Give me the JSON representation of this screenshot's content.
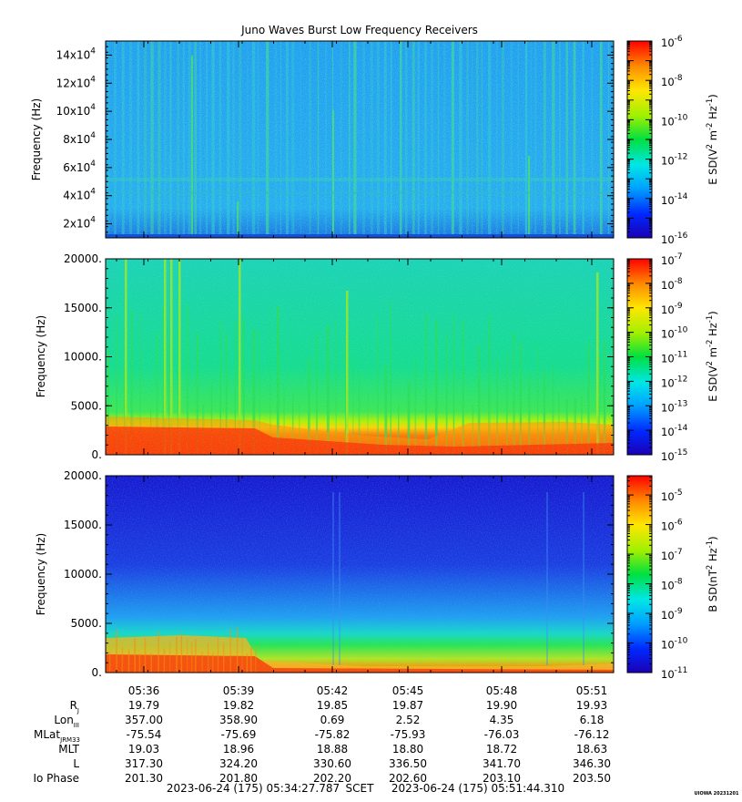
{
  "title": "Juno Waves Burst Low Frequency Receivers",
  "chart_data": [
    {
      "type": "heatmap",
      "ylabel": "Frequency (Hz)",
      "ylim": [
        10000,
        150000
      ],
      "y_ticks": [
        {
          "value": 20000,
          "mant": "2x10",
          "exp": "4"
        },
        {
          "value": 40000,
          "mant": "4x10",
          "exp": "4"
        },
        {
          "value": 60000,
          "mant": "6x10",
          "exp": "4"
        },
        {
          "value": 80000,
          "mant": "8x10",
          "exp": "4"
        },
        {
          "value": 100000,
          "mant": "10x10",
          "exp": "4"
        },
        {
          "value": 120000,
          "mant": "12x10",
          "exp": "4"
        },
        {
          "value": 140000,
          "mant": "14x10",
          "exp": "4"
        }
      ],
      "colorbar": {
        "label_pre": "E SD(V",
        "sup1": "2",
        "label_mid": " m",
        "sup2": "-2",
        "label_mid2": " Hz",
        "sup3": "-1",
        "label_post": ")",
        "log_min": -16,
        "log_max": -6,
        "ticks": [
          {
            "value": -6,
            "base": "10",
            "exp": "-6"
          },
          {
            "value": -8,
            "base": "10",
            "exp": "-8"
          },
          {
            "value": -10,
            "base": "10",
            "exp": "-10"
          },
          {
            "value": -12,
            "base": "10",
            "exp": "-12"
          },
          {
            "value": -14,
            "base": "10",
            "exp": "-14"
          },
          {
            "value": -16,
            "base": "10",
            "exp": "-16"
          }
        ]
      }
    },
    {
      "type": "heatmap",
      "ylabel": "Frequency (Hz)",
      "ylim": [
        0,
        20000
      ],
      "y_ticks": [
        {
          "value": 0,
          "label": "0."
        },
        {
          "value": 5000,
          "label": "5000."
        },
        {
          "value": 10000,
          "label": "10000."
        },
        {
          "value": 15000,
          "label": "15000."
        },
        {
          "value": 20000,
          "label": "20000."
        }
      ],
      "colorbar": {
        "label_pre": "E SD(V",
        "sup1": "2",
        "label_mid": " m",
        "sup2": "-2",
        "label_mid2": " Hz",
        "sup3": "-1",
        "label_post": ")",
        "log_min": -15,
        "log_max": -7,
        "ticks": [
          {
            "value": -7,
            "base": "10",
            "exp": "-7"
          },
          {
            "value": -8,
            "base": "10",
            "exp": "-8"
          },
          {
            "value": -9,
            "base": "10",
            "exp": "-9"
          },
          {
            "value": -10,
            "base": "10",
            "exp": "-10"
          },
          {
            "value": -11,
            "base": "10",
            "exp": "-11"
          },
          {
            "value": -12,
            "base": "10",
            "exp": "-12"
          },
          {
            "value": -13,
            "base": "10",
            "exp": "-13"
          },
          {
            "value": -14,
            "base": "10",
            "exp": "-14"
          },
          {
            "value": -15,
            "base": "10",
            "exp": "-15"
          }
        ]
      }
    },
    {
      "type": "heatmap",
      "ylabel": "Frequency (Hz)",
      "ylim": [
        0,
        20000
      ],
      "y_ticks": [
        {
          "value": 0,
          "label": "0."
        },
        {
          "value": 5000,
          "label": "5000."
        },
        {
          "value": 10000,
          "label": "10000."
        },
        {
          "value": 15000,
          "label": "15000."
        },
        {
          "value": 20000,
          "label": "20000."
        }
      ],
      "colorbar": {
        "label_pre": "B SD(nT",
        "sup1": "2",
        "label_mid": "",
        "sup2": "",
        "label_mid2": " Hz",
        "sup3": "-1",
        "label_post": ")",
        "log_min": -11,
        "log_max": -4.35,
        "ticks": [
          {
            "value": -5,
            "base": "10",
            "exp": "-5"
          },
          {
            "value": -6,
            "base": "10",
            "exp": "-6"
          },
          {
            "value": -7,
            "base": "10",
            "exp": "-7"
          },
          {
            "value": -8,
            "base": "10",
            "exp": "-8"
          },
          {
            "value": -9,
            "base": "10",
            "exp": "-9"
          },
          {
            "value": -10,
            "base": "10",
            "exp": "-10"
          },
          {
            "value": -11,
            "base": "10",
            "exp": "-11"
          }
        ]
      }
    }
  ],
  "x_axis": {
    "start_time": "05:34:27.787",
    "end_time": "05:51:44.310",
    "ticks": [
      "05:36",
      "05:39",
      "05:42",
      "05:45",
      "05:48",
      "05:51"
    ]
  },
  "ephemeris": [
    {
      "label": "R",
      "sub": "J",
      "values": [
        "19.79",
        "19.82",
        "19.85",
        "19.87",
        "19.90",
        "19.93"
      ]
    },
    {
      "label": "Lon",
      "sub": "III",
      "values": [
        "357.00",
        "358.90",
        "0.69",
        "2.52",
        "4.35",
        "6.18"
      ]
    },
    {
      "label": "MLat",
      "sub": "JRM33",
      "values": [
        "-75.54",
        "-75.69",
        "-75.82",
        "-75.93",
        "-76.03",
        "-76.12"
      ]
    },
    {
      "label": "MLT",
      "sub": "",
      "values": [
        "19.03",
        "18.96",
        "18.88",
        "18.80",
        "18.72",
        "18.63"
      ]
    },
    {
      "label": "L",
      "sub": "",
      "values": [
        "317.30",
        "324.20",
        "330.60",
        "336.50",
        "341.70",
        "346.30"
      ]
    },
    {
      "label": "Io Phase",
      "sub": "",
      "values": [
        "201.30",
        "201.80",
        "202.20",
        "202.60",
        "203.10",
        "203.50"
      ]
    }
  ],
  "footer": {
    "start": "2023-06-24 (175) 05:34:27.787",
    "scet": "SCET",
    "end": "2023-06-24 (175) 05:51:44.310"
  },
  "stamp": "UIOWA 20231201",
  "colors": {
    "upper_bg": "#1e96ee",
    "lower_bg": "#1818d0",
    "low_band": "#ff1e00",
    "emission": "#ffd21e"
  }
}
